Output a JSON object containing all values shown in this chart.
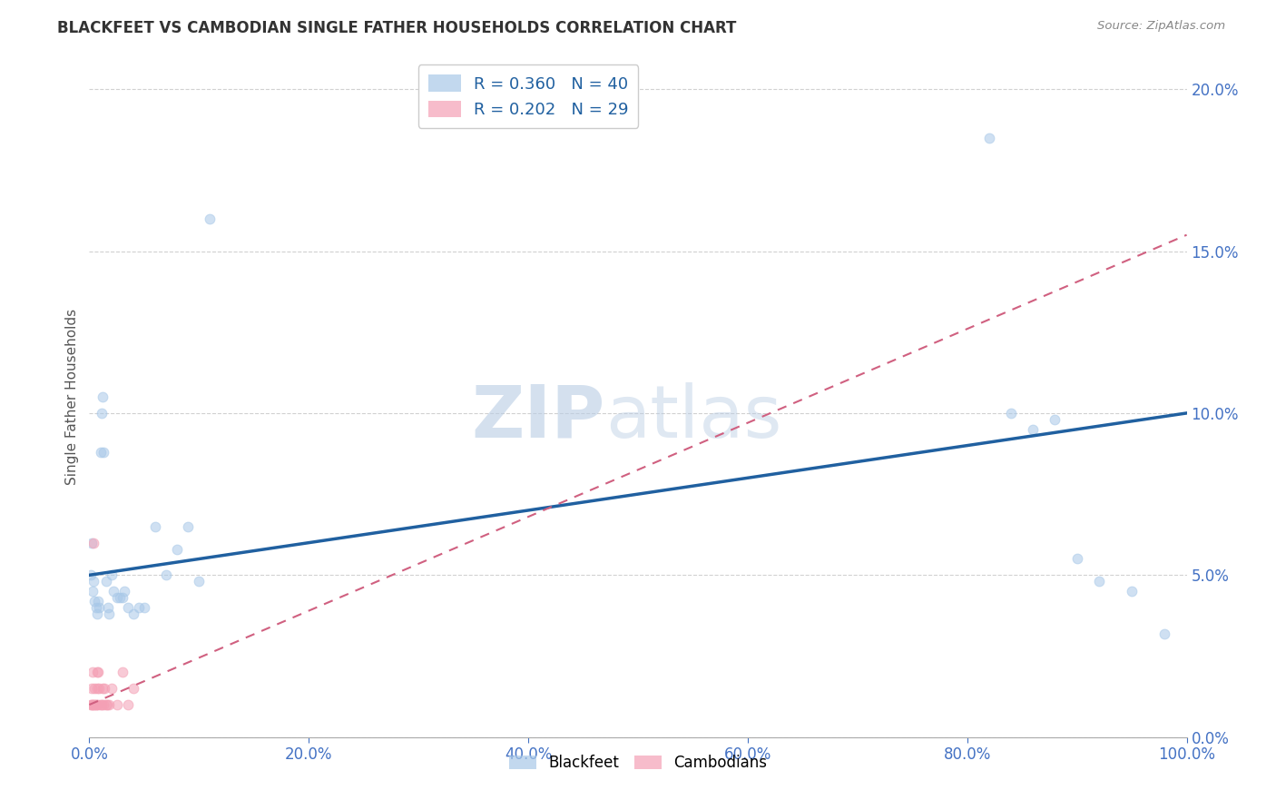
{
  "title": "BLACKFEET VS CAMBODIAN SINGLE FATHER HOUSEHOLDS CORRELATION CHART",
  "source": "Source: ZipAtlas.com",
  "xlim": [
    0,
    1.0
  ],
  "ylim": [
    0,
    0.21
  ],
  "ylabel": "Single Father Households",
  "blackfeet_color": "#a8c8e8",
  "cambodian_color": "#f4a0b5",
  "blackfeet_line_color": "#2060a0",
  "cambodian_line_color": "#d06080",
  "background_color": "#ffffff",
  "grid_color": "#cccccc",
  "title_color": "#333333",
  "axis_label_color": "#4472c4",
  "marker_size": 60,
  "marker_alpha": 0.55,
  "blackfeet_R": 0.36,
  "blackfeet_N": 40,
  "cambodian_R": 0.202,
  "cambodian_N": 29,
  "blackfeet_x": [
    0.001,
    0.002,
    0.003,
    0.004,
    0.005,
    0.006,
    0.007,
    0.008,
    0.009,
    0.01,
    0.011,
    0.012,
    0.013,
    0.015,
    0.017,
    0.018,
    0.02,
    0.022,
    0.025,
    0.028,
    0.03,
    0.032,
    0.035,
    0.04,
    0.045,
    0.05,
    0.06,
    0.07,
    0.08,
    0.09,
    0.1,
    0.11,
    0.82,
    0.84,
    0.86,
    0.88,
    0.9,
    0.92,
    0.95,
    0.98
  ],
  "blackfeet_y": [
    0.05,
    0.06,
    0.045,
    0.048,
    0.042,
    0.04,
    0.038,
    0.042,
    0.04,
    0.088,
    0.1,
    0.105,
    0.088,
    0.048,
    0.04,
    0.038,
    0.05,
    0.045,
    0.043,
    0.043,
    0.043,
    0.045,
    0.04,
    0.038,
    0.04,
    0.04,
    0.065,
    0.05,
    0.058,
    0.065,
    0.048,
    0.16,
    0.185,
    0.1,
    0.095,
    0.098,
    0.055,
    0.048,
    0.045,
    0.032
  ],
  "cambodian_x": [
    0.001,
    0.002,
    0.002,
    0.003,
    0.003,
    0.004,
    0.004,
    0.005,
    0.005,
    0.006,
    0.006,
    0.007,
    0.007,
    0.008,
    0.008,
    0.009,
    0.01,
    0.011,
    0.012,
    0.013,
    0.014,
    0.015,
    0.016,
    0.018,
    0.02,
    0.025,
    0.03,
    0.035,
    0.04
  ],
  "cambodian_y": [
    0.01,
    0.01,
    0.015,
    0.01,
    0.02,
    0.01,
    0.06,
    0.01,
    0.015,
    0.01,
    0.01,
    0.015,
    0.02,
    0.01,
    0.02,
    0.015,
    0.01,
    0.01,
    0.015,
    0.01,
    0.015,
    0.01,
    0.01,
    0.01,
    0.015,
    0.01,
    0.02,
    0.01,
    0.015
  ],
  "bf_line_x0": 0.0,
  "bf_line_y0": 0.05,
  "bf_line_x1": 1.0,
  "bf_line_y1": 0.1,
  "cam_line_x0": 0.0,
  "cam_line_y0": 0.01,
  "cam_line_x1": 1.0,
  "cam_line_y1": 0.155
}
